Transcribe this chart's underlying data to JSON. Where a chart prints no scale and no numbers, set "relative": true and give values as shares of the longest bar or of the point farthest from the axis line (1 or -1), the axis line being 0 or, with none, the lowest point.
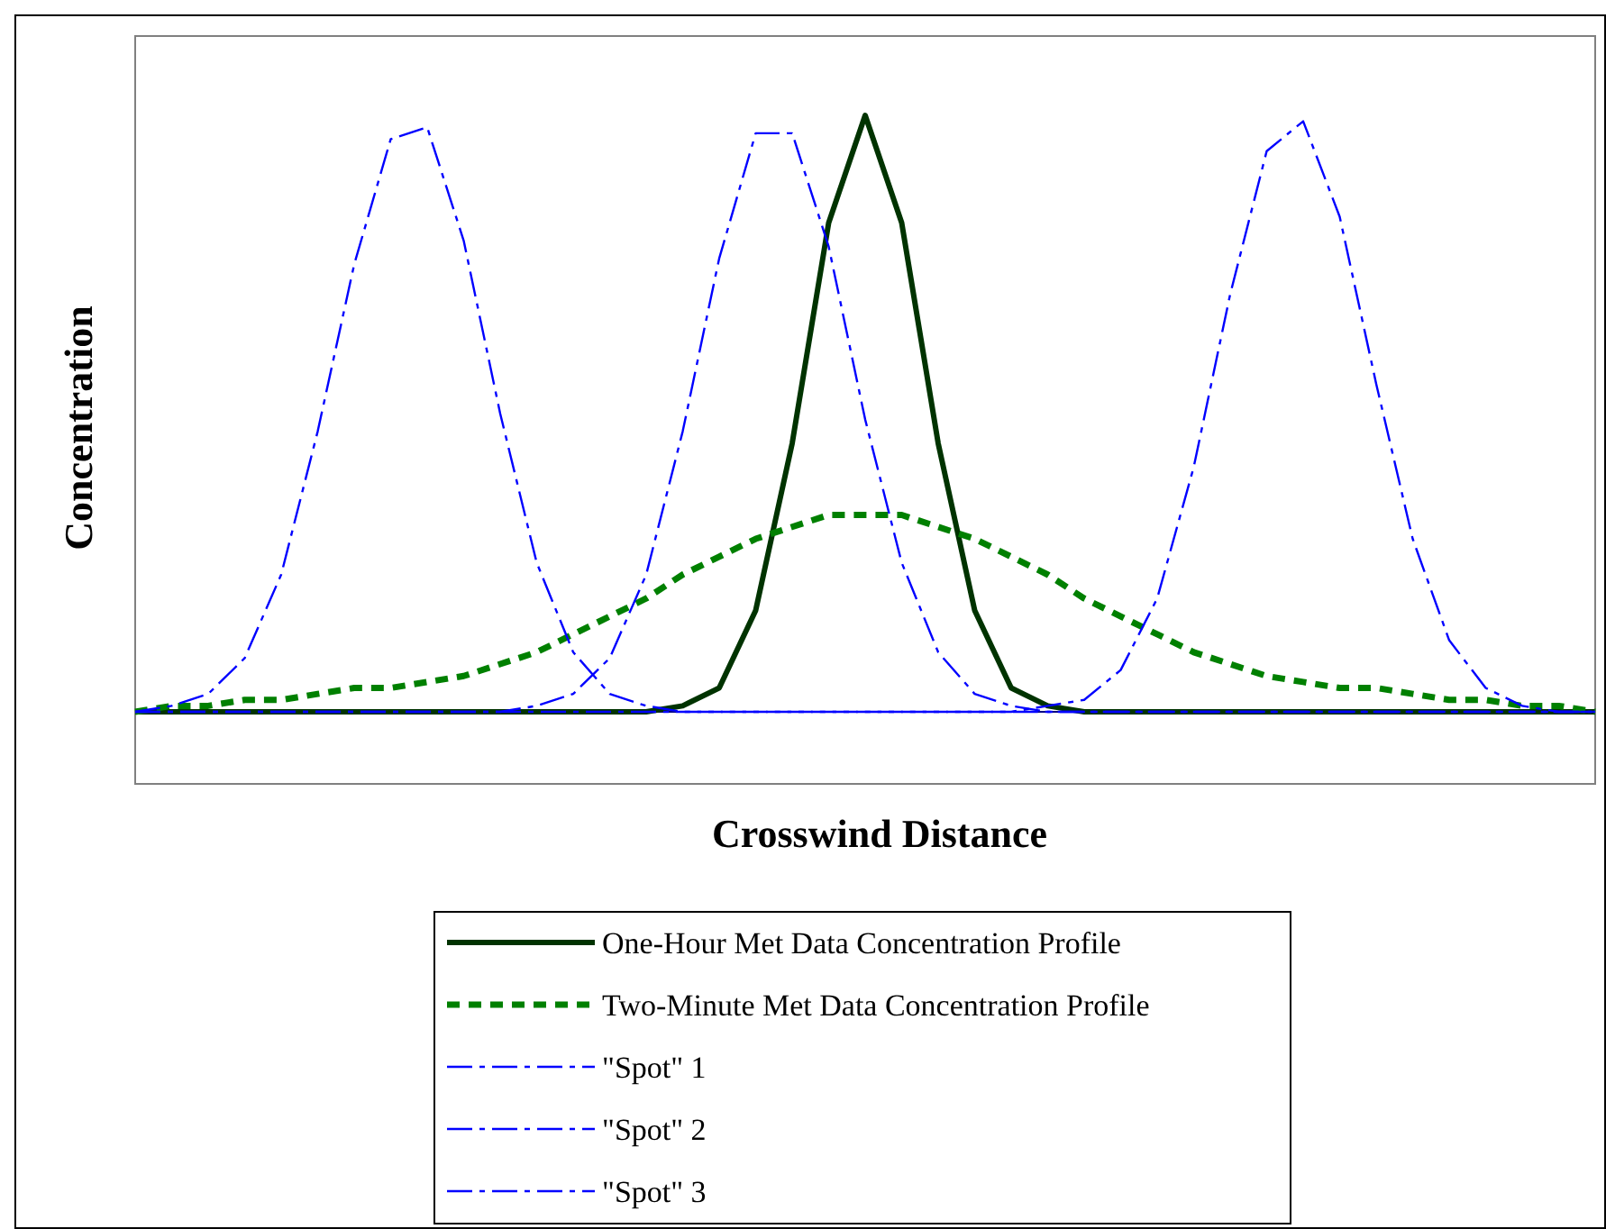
{
  "chart_data": {
    "type": "line",
    "relative": true,
    "xlabel": "Crosswind Distance",
    "ylabel": "Concentration",
    "legend": "bottom",
    "categories": [
      null,
      null,
      null,
      null,
      null,
      null,
      null,
      null,
      null,
      null,
      null,
      null,
      null,
      null,
      null,
      null,
      null,
      null,
      null,
      null,
      null,
      null,
      null,
      null,
      null,
      null,
      null,
      null,
      null,
      null,
      null,
      null,
      null,
      null,
      null,
      null,
      null,
      null,
      null,
      null,
      null
    ],
    "series": [
      {
        "name": "One-Hour Met Data Concentration Profile",
        "color": "#003300",
        "line_style": "solid",
        "values": [
          0,
          0,
          0,
          0,
          0,
          0,
          0,
          0,
          0,
          0,
          0,
          0,
          0,
          0,
          0,
          0.01,
          0.04,
          0.17,
          0.45,
          0.82,
          1,
          0.82,
          0.45,
          0.17,
          0.04,
          0.01,
          0,
          0,
          0,
          0,
          0,
          0,
          0,
          0,
          0,
          0,
          0,
          0,
          0,
          0,
          0
        ]
      },
      {
        "name": "Two-Minute Met Data Concentration Profile",
        "color": "#008000",
        "line_style": "dashed",
        "values": [
          0,
          0.01,
          0.01,
          0.02,
          0.02,
          0.03,
          0.04,
          0.04,
          0.05,
          0.06,
          0.08,
          0.1,
          0.13,
          0.16,
          0.19,
          0.23,
          0.26,
          0.29,
          0.31,
          0.33,
          0.33,
          0.33,
          0.31,
          0.29,
          0.26,
          0.23,
          0.19,
          0.16,
          0.13,
          0.1,
          0.08,
          0.06,
          0.05,
          0.04,
          0.04,
          0.03,
          0.02,
          0.02,
          0.01,
          0.01,
          0
        ]
      },
      {
        "name": "\"Spot\" 1",
        "color": "#0000ff",
        "line_style": "dashdot",
        "values": [
          0,
          0.01,
          0.03,
          0.09,
          0.23,
          0.47,
          0.75,
          0.96,
          0.98,
          0.79,
          0.5,
          0.25,
          0.1,
          0.03,
          0.01,
          0,
          0,
          0,
          0,
          0,
          0,
          0,
          0,
          0,
          0,
          0,
          0,
          0,
          0,
          0,
          0,
          0,
          0,
          0,
          0,
          0,
          0,
          0,
          0,
          0,
          0
        ]
      },
      {
        "name": "\"Spot\" 2",
        "color": "#0000ff",
        "line_style": "dashdot",
        "values": [
          0,
          0,
          0,
          0,
          0,
          0,
          0,
          0,
          0,
          0,
          0,
          0.01,
          0.03,
          0.09,
          0.23,
          0.47,
          0.76,
          0.97,
          0.97,
          0.78,
          0.49,
          0.25,
          0.1,
          0.03,
          0.01,
          0,
          0,
          0,
          0,
          0,
          0,
          0,
          0,
          0,
          0,
          0,
          0,
          0,
          0,
          0,
          0
        ]
      },
      {
        "name": "\"Spot\" 3",
        "color": "#0000ff",
        "line_style": "dashdot",
        "values": [
          0,
          0,
          0,
          0,
          0,
          0,
          0,
          0,
          0,
          0,
          0,
          0,
          0,
          0,
          0,
          0,
          0,
          0,
          0,
          0,
          0,
          0,
          0,
          0,
          0,
          0.01,
          0.02,
          0.07,
          0.19,
          0.41,
          0.7,
          0.94,
          0.99,
          0.83,
          0.55,
          0.29,
          0.12,
          0.04,
          0.01,
          0,
          0
        ]
      }
    ]
  }
}
